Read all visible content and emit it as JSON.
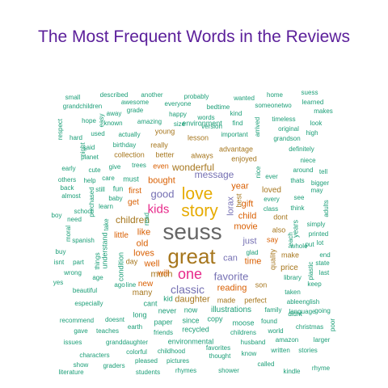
{
  "title": "The Most Frequent Words in the Reviews",
  "colors": {
    "title": "#5b1f9a",
    "teal": "#1b9e77",
    "orange": "#d95f02",
    "purple": "#7570b3",
    "magenta": "#e7298a",
    "olive": "#66a61e",
    "gold": "#e6ab02",
    "brown": "#a6761d",
    "gray": "#666666"
  },
  "words": [
    "seuss",
    "great",
    "love",
    "story",
    "one",
    "kids",
    "classic",
    "favorite",
    "good",
    "wonderful",
    "message",
    "children",
    "daughter",
    "reading",
    "lorax",
    "can",
    "child",
    "time",
    "movie",
    "just",
    "gift",
    "year",
    "like",
    "old",
    "loves",
    "well",
    "much",
    "bought",
    "get",
    "first",
    "will",
    "new",
    "little",
    "many",
    "even",
    "always",
    "enjoyed",
    "loved",
    "say",
    "dont",
    "also",
    "make",
    "price",
    "quality",
    "son",
    "best",
    "day",
    "made",
    "perfect",
    "really",
    "lesson",
    "young",
    "better",
    "collection",
    "advantage",
    "family",
    "found",
    "world",
    "christmas",
    "long",
    "never",
    "now",
    "illustrations",
    "recycled",
    "paper",
    "since",
    "copy",
    "moose",
    "cant",
    "kid",
    "environment",
    "small",
    "described",
    "another",
    "probably",
    "wanted",
    "home",
    "suess",
    "grandchildren",
    "awesome",
    "learned",
    "respect",
    "hope",
    "known",
    "grade",
    "everyone",
    "bedtime",
    "someonetwo",
    "makes",
    "happy",
    "words",
    "kind",
    "away",
    "amazing",
    "size",
    "version",
    "find",
    "arrived",
    "original",
    "look",
    "hard",
    "used",
    "actually",
    "birthday",
    "important",
    "timeless",
    "high",
    "night",
    "easy",
    "said",
    "planet",
    "learn",
    "cute",
    "baby",
    "school",
    "fun",
    "still",
    "give",
    "trees",
    "others",
    "help",
    "care",
    "must",
    "early",
    "back",
    "almost",
    "need",
    "boy",
    "spanish",
    "buy",
    "isnt",
    "part",
    "wrong",
    "yes",
    "beautiful",
    "especially",
    "recommend",
    "gave",
    "teaches",
    "issues",
    "characters",
    "literature",
    "show",
    "graders",
    "students",
    "colorful",
    "childhood",
    "granddaughter",
    "environmental",
    "pleased",
    "pictures",
    "rhymes",
    "friends",
    "earth",
    "doesnt",
    "shower",
    "thought",
    "know",
    "called",
    "kindle",
    "rhyme",
    "written",
    "stories",
    "husband",
    "amazon",
    "larger",
    "childrens",
    "favorites",
    "language",
    "ableenglish",
    "going",
    "poor",
    "didnt",
    "taken",
    "keep",
    "library",
    "whole",
    "end",
    "state",
    "last",
    "plastic",
    "put",
    "lot",
    "printed",
    "thats",
    "bigger",
    "may",
    "adults",
    "simply",
    "every",
    "see",
    "class",
    "think",
    "around",
    "niece",
    "tell",
    "definitely",
    "grandson",
    "nice",
    "ever",
    "teach",
    "glad",
    "purchased",
    "take",
    "years",
    "understand",
    "condition",
    "things",
    "age",
    "moral",
    "line",
    "read",
    "ago",
    "still",
    "gift"
  ]
}
